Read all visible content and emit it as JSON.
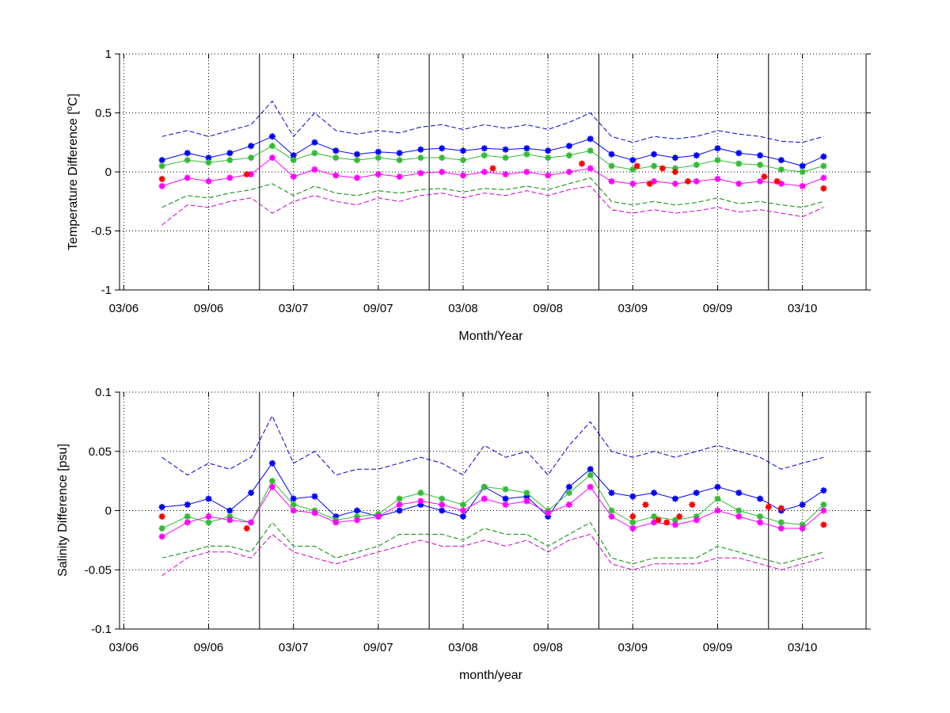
{
  "chart_data": [
    {
      "type": "line",
      "xlabel": "Month/Year",
      "ylabel": "Temperature Difference [",
      "ylabel_sup": "o",
      "ylabel_end": "C]",
      "x_unit": "months since 03/06",
      "xlim": [
        -0.1,
        17.5
      ],
      "ylim": [
        -1,
        1
      ],
      "x_ticks": [
        {
          "x": 0,
          "label": "03/06"
        },
        {
          "x": 2,
          "label": "09/06"
        },
        {
          "x": 4,
          "label": "03/07"
        },
        {
          "x": 6,
          "label": "09/07"
        },
        {
          "x": 8,
          "label": "03/08"
        },
        {
          "x": 10,
          "label": "09/08"
        },
        {
          "x": 12,
          "label": "03/09"
        },
        {
          "x": 14,
          "label": "09/09"
        },
        {
          "x": 16,
          "label": "03/10"
        }
      ],
      "y_ticks": [
        {
          "y": -1,
          "label": "-1"
        },
        {
          "y": -0.5,
          "label": "-0.5"
        },
        {
          "y": 0,
          "label": "0"
        },
        {
          "y": 0.5,
          "label": "0.5"
        },
        {
          "y": 1,
          "label": "1"
        }
      ],
      "year_boundaries": [
        3.2,
        7.2,
        11.2,
        15.2
      ],
      "grid": "dotted",
      "legend": "none",
      "series": [
        {
          "color": "#0000ff",
          "style": "markers",
          "x": [
            0.9,
            1.5,
            2.0,
            2.5,
            3.0,
            3.5,
            4.0,
            4.5,
            5.0,
            5.5,
            6.0,
            6.5,
            7.0,
            7.5,
            8.0,
            8.5,
            9.0,
            9.5,
            10.0,
            10.5,
            11.0,
            11.5,
            12.0,
            12.5,
            13.0,
            13.5,
            14.0,
            14.5,
            15.0,
            15.5,
            16.0,
            16.5
          ],
          "y": [
            0.1,
            0.16,
            0.12,
            0.16,
            0.22,
            0.3,
            0.14,
            0.25,
            0.18,
            0.15,
            0.17,
            0.16,
            0.19,
            0.2,
            0.18,
            0.2,
            0.19,
            0.2,
            0.18,
            0.22,
            0.28,
            0.15,
            0.1,
            0.15,
            0.12,
            0.14,
            0.2,
            0.16,
            0.14,
            0.1,
            0.05,
            0.13
          ]
        },
        {
          "color": "#33bb33",
          "style": "markers",
          "x": [
            0.9,
            1.5,
            2.0,
            2.5,
            3.0,
            3.5,
            4.0,
            4.5,
            5.0,
            5.5,
            6.0,
            6.5,
            7.0,
            7.5,
            8.0,
            8.5,
            9.0,
            9.5,
            10.0,
            10.5,
            11.0,
            11.5,
            12.0,
            12.5,
            13.0,
            13.5,
            14.0,
            14.5,
            15.0,
            15.5,
            16.0,
            16.5
          ],
          "y": [
            0.05,
            0.1,
            0.08,
            0.1,
            0.12,
            0.22,
            0.1,
            0.16,
            0.12,
            0.1,
            0.12,
            0.1,
            0.12,
            0.12,
            0.1,
            0.14,
            0.12,
            0.15,
            0.12,
            0.14,
            0.18,
            0.05,
            0.02,
            0.05,
            0.03,
            0.06,
            0.1,
            0.07,
            0.06,
            0.02,
            0.0,
            0.05
          ]
        },
        {
          "color": "#ff00ff",
          "style": "markers",
          "x": [
            0.9,
            1.5,
            2.0,
            2.5,
            3.0,
            3.5,
            4.0,
            4.5,
            5.0,
            5.5,
            6.0,
            6.5,
            7.0,
            7.5,
            8.0,
            8.5,
            9.0,
            9.5,
            10.0,
            10.5,
            11.0,
            11.5,
            12.0,
            12.5,
            13.0,
            13.5,
            14.0,
            14.5,
            15.0,
            15.5,
            16.0,
            16.5
          ],
          "y": [
            -0.12,
            -0.05,
            -0.08,
            -0.05,
            -0.02,
            0.12,
            -0.04,
            0.02,
            -0.03,
            -0.05,
            -0.02,
            -0.04,
            -0.01,
            0.0,
            -0.03,
            0.0,
            -0.02,
            0.0,
            -0.03,
            0.0,
            0.03,
            -0.08,
            -0.1,
            -0.08,
            -0.1,
            -0.08,
            -0.06,
            -0.1,
            -0.08,
            -0.1,
            -0.12,
            -0.05
          ]
        },
        {
          "color": "#0000cc",
          "style": "dashed",
          "x": [
            0.9,
            1.5,
            2.0,
            2.5,
            3.0,
            3.5,
            4.0,
            4.5,
            5.0,
            5.5,
            6.0,
            6.5,
            7.0,
            7.5,
            8.0,
            8.5,
            9.0,
            9.5,
            10.0,
            10.5,
            11.0,
            11.5,
            12.0,
            12.5,
            13.0,
            13.5,
            14.0,
            14.5,
            15.0,
            15.5,
            16.0,
            16.5
          ],
          "y": [
            0.3,
            0.35,
            0.3,
            0.35,
            0.4,
            0.6,
            0.3,
            0.5,
            0.35,
            0.32,
            0.35,
            0.33,
            0.38,
            0.4,
            0.36,
            0.4,
            0.37,
            0.4,
            0.36,
            0.42,
            0.5,
            0.3,
            0.25,
            0.3,
            0.28,
            0.3,
            0.35,
            0.32,
            0.3,
            0.26,
            0.25,
            0.3
          ]
        },
        {
          "color": "#008800",
          "style": "dashed",
          "x": [
            0.9,
            1.5,
            2.0,
            2.5,
            3.0,
            3.5,
            4.0,
            4.5,
            5.0,
            5.5,
            6.0,
            6.5,
            7.0,
            7.5,
            8.0,
            8.5,
            9.0,
            9.5,
            10.0,
            10.5,
            11.0,
            11.5,
            12.0,
            12.5,
            13.0,
            13.5,
            14.0,
            14.5,
            15.0,
            15.5,
            16.0,
            16.5
          ],
          "y": [
            -0.3,
            -0.2,
            -0.22,
            -0.18,
            -0.15,
            -0.1,
            -0.2,
            -0.12,
            -0.18,
            -0.2,
            -0.16,
            -0.18,
            -0.15,
            -0.14,
            -0.17,
            -0.14,
            -0.15,
            -0.12,
            -0.15,
            -0.1,
            -0.05,
            -0.25,
            -0.28,
            -0.25,
            -0.28,
            -0.26,
            -0.22,
            -0.27,
            -0.25,
            -0.28,
            -0.3,
            -0.25
          ]
        },
        {
          "color": "#cc00cc",
          "style": "dashed",
          "x": [
            0.9,
            1.5,
            2.0,
            2.5,
            3.0,
            3.5,
            4.0,
            4.5,
            5.0,
            5.5,
            6.0,
            6.5,
            7.0,
            7.5,
            8.0,
            8.5,
            9.0,
            9.5,
            10.0,
            10.5,
            11.0,
            11.5,
            12.0,
            12.5,
            13.0,
            13.5,
            14.0,
            14.5,
            15.0,
            15.5,
            16.0,
            16.5
          ],
          "y": [
            -0.45,
            -0.28,
            -0.3,
            -0.25,
            -0.22,
            -0.35,
            -0.25,
            -0.2,
            -0.25,
            -0.28,
            -0.22,
            -0.25,
            -0.2,
            -0.18,
            -0.22,
            -0.18,
            -0.2,
            -0.16,
            -0.2,
            -0.15,
            -0.12,
            -0.32,
            -0.35,
            -0.32,
            -0.35,
            -0.33,
            -0.3,
            -0.34,
            -0.32,
            -0.35,
            -0.38,
            -0.3
          ]
        },
        {
          "color": "#ff0000",
          "style": "markers",
          "x": [
            0.9,
            2.9,
            8.7,
            10.8,
            12.1,
            12.4,
            12.7,
            13.0,
            13.3,
            15.1,
            15.4,
            16.5
          ],
          "y": [
            -0.06,
            -0.02,
            0.03,
            0.07,
            0.05,
            -0.1,
            0.03,
            0.0,
            -0.08,
            -0.04,
            -0.08,
            -0.14
          ]
        }
      ]
    },
    {
      "type": "line",
      "xlabel": "month/year",
      "ylabel": "Salinity Difference [psu]",
      "x_unit": "months since 03/06",
      "xlim": [
        -0.1,
        17.5
      ],
      "ylim": [
        -0.1,
        0.1
      ],
      "x_ticks": [
        {
          "x": 0,
          "label": "03/06"
        },
        {
          "x": 2,
          "label": "09/06"
        },
        {
          "x": 4,
          "label": "03/07"
        },
        {
          "x": 6,
          "label": "09/07"
        },
        {
          "x": 8,
          "label": "03/08"
        },
        {
          "x": 10,
          "label": "09/08"
        },
        {
          "x": 12,
          "label": "03/09"
        },
        {
          "x": 14,
          "label": "09/09"
        },
        {
          "x": 16,
          "label": "03/10"
        }
      ],
      "y_ticks": [
        {
          "y": -0.1,
          "label": "-0.1"
        },
        {
          "y": -0.05,
          "label": "-0.05"
        },
        {
          "y": 0,
          "label": "0"
        },
        {
          "y": 0.05,
          "label": "0.05"
        },
        {
          "y": 0.1,
          "label": "0.1"
        }
      ],
      "year_boundaries": [
        3.2,
        7.2,
        11.2,
        15.2
      ],
      "grid": "dotted",
      "legend": "none",
      "series": [
        {
          "color": "#0000ff",
          "style": "markers",
          "x": [
            0.9,
            1.5,
            2.0,
            2.5,
            3.0,
            3.5,
            4.0,
            4.5,
            5.0,
            5.5,
            6.0,
            6.5,
            7.0,
            7.5,
            8.0,
            8.5,
            9.0,
            9.5,
            10.0,
            10.5,
            11.0,
            11.5,
            12.0,
            12.5,
            13.0,
            13.5,
            14.0,
            14.5,
            15.0,
            15.5,
            16.0,
            16.5
          ],
          "y": [
            0.003,
            0.005,
            0.01,
            0.0,
            0.015,
            0.04,
            0.01,
            0.012,
            -0.005,
            0.0,
            -0.005,
            0.0,
            0.005,
            0.0,
            -0.005,
            0.02,
            0.01,
            0.012,
            -0.005,
            0.02,
            0.035,
            0.015,
            0.012,
            0.015,
            0.01,
            0.015,
            0.02,
            0.015,
            0.01,
            0.0,
            0.005,
            0.017
          ]
        },
        {
          "color": "#33bb33",
          "style": "markers",
          "x": [
            0.9,
            1.5,
            2.0,
            2.5,
            3.0,
            3.5,
            4.0,
            4.5,
            5.0,
            5.5,
            6.0,
            6.5,
            7.0,
            7.5,
            8.0,
            8.5,
            9.0,
            9.5,
            10.0,
            10.5,
            11.0,
            11.5,
            12.0,
            12.5,
            13.0,
            13.5,
            14.0,
            14.5,
            15.0,
            15.5,
            16.0,
            16.5
          ],
          "y": [
            -0.015,
            -0.005,
            -0.01,
            -0.005,
            -0.01,
            0.025,
            0.005,
            0.0,
            -0.008,
            -0.005,
            -0.003,
            0.01,
            0.015,
            0.01,
            0.005,
            0.02,
            0.018,
            0.015,
            0.0,
            0.015,
            0.03,
            0.0,
            -0.01,
            -0.005,
            -0.008,
            -0.005,
            0.01,
            0.0,
            -0.005,
            -0.01,
            -0.012,
            0.005
          ]
        },
        {
          "color": "#ff00ff",
          "style": "markers",
          "x": [
            0.9,
            1.5,
            2.0,
            2.5,
            3.0,
            3.5,
            4.0,
            4.5,
            5.0,
            5.5,
            6.0,
            6.5,
            7.0,
            7.5,
            8.0,
            8.5,
            9.0,
            9.5,
            10.0,
            10.5,
            11.0,
            11.5,
            12.0,
            12.5,
            13.0,
            13.5,
            14.0,
            14.5,
            15.0,
            15.5,
            16.0,
            16.5
          ],
          "y": [
            -0.022,
            -0.01,
            -0.005,
            -0.008,
            -0.01,
            0.02,
            0.0,
            -0.002,
            -0.01,
            -0.008,
            -0.005,
            0.005,
            0.008,
            0.005,
            0.0,
            0.01,
            0.005,
            0.008,
            -0.002,
            0.005,
            0.02,
            -0.005,
            -0.015,
            -0.01,
            -0.012,
            -0.008,
            0.0,
            -0.005,
            -0.01,
            -0.015,
            -0.015,
            0.0
          ]
        },
        {
          "color": "#0000cc",
          "style": "dashed",
          "x": [
            0.9,
            1.5,
            2.0,
            2.5,
            3.0,
            3.5,
            4.0,
            4.5,
            5.0,
            5.5,
            6.0,
            6.5,
            7.0,
            7.5,
            8.0,
            8.5,
            9.0,
            9.5,
            10.0,
            10.5,
            11.0,
            11.5,
            12.0,
            12.5,
            13.0,
            13.5,
            14.0,
            14.5,
            15.0,
            15.5,
            16.0,
            16.5
          ],
          "y": [
            0.045,
            0.03,
            0.04,
            0.035,
            0.045,
            0.08,
            0.04,
            0.05,
            0.03,
            0.035,
            0.035,
            0.04,
            0.045,
            0.04,
            0.03,
            0.055,
            0.045,
            0.05,
            0.03,
            0.055,
            0.075,
            0.05,
            0.045,
            0.05,
            0.045,
            0.05,
            0.055,
            0.05,
            0.045,
            0.035,
            0.04,
            0.045
          ]
        },
        {
          "color": "#008800",
          "style": "dashed",
          "x": [
            0.9,
            1.5,
            2.0,
            2.5,
            3.0,
            3.5,
            4.0,
            4.5,
            5.0,
            5.5,
            6.0,
            6.5,
            7.0,
            7.5,
            8.0,
            8.5,
            9.0,
            9.5,
            10.0,
            10.5,
            11.0,
            11.5,
            12.0,
            12.5,
            13.0,
            13.5,
            14.0,
            14.5,
            15.0,
            15.5,
            16.0,
            16.5
          ],
          "y": [
            -0.04,
            -0.035,
            -0.03,
            -0.03,
            -0.035,
            -0.01,
            -0.03,
            -0.03,
            -0.04,
            -0.035,
            -0.03,
            -0.02,
            -0.02,
            -0.02,
            -0.025,
            -0.015,
            -0.02,
            -0.02,
            -0.03,
            -0.02,
            -0.01,
            -0.04,
            -0.045,
            -0.04,
            -0.04,
            -0.04,
            -0.03,
            -0.035,
            -0.04,
            -0.045,
            -0.04,
            -0.035
          ]
        },
        {
          "color": "#cc00cc",
          "style": "dashed",
          "x": [
            0.9,
            1.5,
            2.0,
            2.5,
            3.0,
            3.5,
            4.0,
            4.5,
            5.0,
            5.5,
            6.0,
            6.5,
            7.0,
            7.5,
            8.0,
            8.5,
            9.0,
            9.5,
            10.0,
            10.5,
            11.0,
            11.5,
            12.0,
            12.5,
            13.0,
            13.5,
            14.0,
            14.5,
            15.0,
            15.5,
            16.0,
            16.5
          ],
          "y": [
            -0.055,
            -0.04,
            -0.035,
            -0.035,
            -0.04,
            -0.02,
            -0.035,
            -0.04,
            -0.045,
            -0.04,
            -0.035,
            -0.03,
            -0.025,
            -0.03,
            -0.03,
            -0.025,
            -0.03,
            -0.025,
            -0.035,
            -0.025,
            -0.02,
            -0.045,
            -0.05,
            -0.045,
            -0.045,
            -0.045,
            -0.04,
            -0.04,
            -0.045,
            -0.05,
            -0.045,
            -0.04
          ]
        },
        {
          "color": "#ff0000",
          "style": "markers",
          "x": [
            0.9,
            2.9,
            12.0,
            12.3,
            12.6,
            12.8,
            13.1,
            13.4,
            15.2,
            15.5,
            16.5
          ],
          "y": [
            -0.005,
            -0.015,
            -0.005,
            0.005,
            -0.008,
            -0.01,
            -0.005,
            0.005,
            0.003,
            0.002,
            -0.012
          ]
        }
      ]
    }
  ]
}
